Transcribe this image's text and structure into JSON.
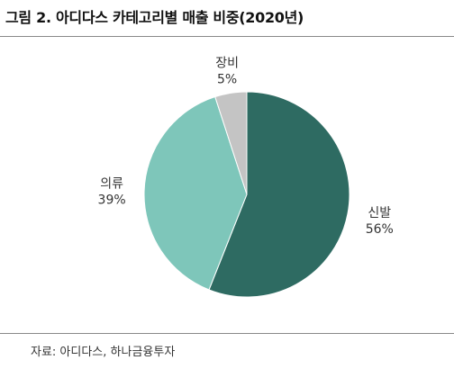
{
  "figure_title": "그림 2. 아디다스 카테고리별 매출 비중(2020년)",
  "source": "자료: 아디다스, 하나금융투자",
  "chart_data": {
    "type": "pie",
    "title": "그림 2. 아디다스 카테고리별 매출 비중(2020년)",
    "slices": [
      {
        "label": "신발",
        "value": 56,
        "value_label": "56%",
        "color": "#2e6b62"
      },
      {
        "label": "의류",
        "value": 39,
        "value_label": "39%",
        "color": "#7ec6ba"
      },
      {
        "label": "장비",
        "value": 5,
        "value_label": "5%",
        "color": "#c4c4c4"
      }
    ],
    "start": "12 o'clock",
    "direction": "clockwise"
  }
}
